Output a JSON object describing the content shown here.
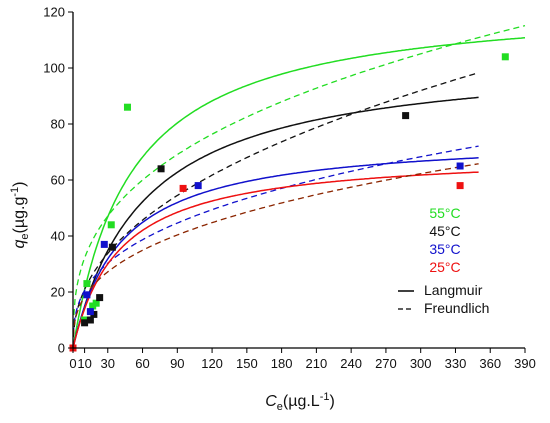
{
  "chart_data": {
    "type": "scatter",
    "xlabel": {
      "symbol": "C",
      "sub": "e",
      "unit_prefix": "(µg.L",
      "unit_sup": "-1",
      "unit_suffix": ")"
    },
    "ylabel": {
      "symbol": "q",
      "sub": "e",
      "unit_prefix": "(µg.g",
      "unit_sup": "-1",
      "unit_suffix": ")"
    },
    "xlim": [
      0,
      390
    ],
    "ylim": [
      0,
      120
    ],
    "x_ticks": [
      "0",
      "10",
      "30",
      "60",
      "90",
      "120",
      "150",
      "180",
      "210",
      "240",
      "270",
      "300",
      "330",
      "360",
      "390"
    ],
    "x_tick_values": [
      0,
      10,
      30,
      60,
      90,
      120,
      150,
      180,
      210,
      240,
      270,
      300,
      330,
      360,
      390
    ],
    "y_ticks": [
      "0",
      "20",
      "40",
      "60",
      "80",
      "100",
      "120"
    ],
    "y_tick_values": [
      0,
      20,
      40,
      60,
      80,
      100,
      120
    ],
    "series": [
      {
        "name": "55°C",
        "color": "#22dd22",
        "points": [
          [
            0,
            0
          ],
          [
            10,
            10
          ],
          [
            12,
            23
          ],
          [
            17,
            15
          ],
          [
            20,
            16
          ],
          [
            33,
            44
          ],
          [
            47,
            86
          ],
          [
            373,
            104
          ]
        ],
        "langmuir": {
          "qm": 125,
          "K": 0.02,
          "xmax": 390
        },
        "freundlich": {
          "K": 14.4,
          "n": 2.87,
          "xmax": 390
        }
      },
      {
        "name": "45°C",
        "color": "#111111",
        "points": [
          [
            0,
            0
          ],
          [
            10,
            9
          ],
          [
            15,
            10
          ],
          [
            18,
            12
          ],
          [
            23,
            18
          ],
          [
            34,
            36
          ],
          [
            76,
            64
          ],
          [
            287,
            83
          ]
        ],
        "langmuir": {
          "qm": 105,
          "K": 0.0165,
          "xmax": 350
        },
        "freundlich": {
          "K": 7.7,
          "n": 2.3,
          "xmax": 350
        }
      },
      {
        "name": "35°C",
        "color": "#1111cc",
        "points": [
          [
            0,
            0
          ],
          [
            12,
            19
          ],
          [
            15,
            13
          ],
          [
            27,
            37
          ],
          [
            108,
            58
          ],
          [
            334,
            65
          ]
        ],
        "langmuir": {
          "qm": 76,
          "K": 0.024,
          "xmax": 350
        },
        "freundlich": {
          "K": 9.1,
          "n": 2.83,
          "xmax": 350
        }
      },
      {
        "name": "25°C",
        "color": "#ee1111",
        "points": [
          [
            0,
            0
          ],
          [
            95,
            57
          ],
          [
            334,
            58
          ]
        ],
        "langmuir": {
          "qm": 70,
          "K": 0.025,
          "xmax": 350
        },
        "freundlich": {
          "K": 8.0,
          "n": 2.78,
          "xmax": 350
        }
      }
    ],
    "freundlich_color_25": "#8b2500",
    "legend_lines": [
      "Langmuir",
      "Freundlich"
    ]
  }
}
